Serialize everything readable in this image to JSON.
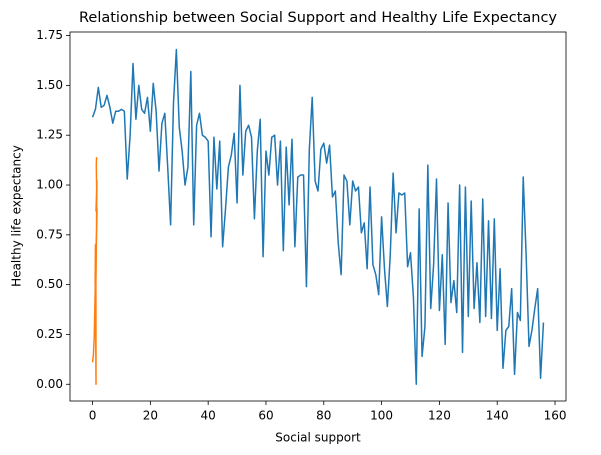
{
  "chart_data": {
    "type": "line",
    "title": "Relationship between Social Support and Healthy Life Expectancy",
    "xlabel": "Social support",
    "ylabel": "Healthy life expectancy",
    "xlim": [
      -7.8,
      163.8
    ],
    "xticks": [
      0,
      20,
      40,
      60,
      80,
      100,
      120,
      140,
      160
    ],
    "ylim": [
      -0.084,
      1.768
    ],
    "yticks": [
      {
        "value": 0,
        "label": "0.00"
      },
      0.25,
      {
        "value": 0.5,
        "label": "0.50"
      },
      0.75,
      {
        "value": 1,
        "label": "1.00"
      },
      1.25,
      {
        "value": 1.5,
        "label": "1.50"
      },
      1.75
    ],
    "series": [
      {
        "color": "#1f77b4",
        "x": [
          0,
          1,
          2,
          3,
          4,
          5,
          6,
          7,
          8,
          9,
          10,
          11,
          12,
          13,
          14,
          15,
          16,
          17,
          18,
          19,
          20,
          21,
          22,
          23,
          24,
          25,
          26,
          27,
          28,
          29,
          30,
          31,
          32,
          33,
          34,
          35,
          36,
          37,
          38,
          39,
          40,
          41,
          42,
          43,
          44,
          45,
          46,
          47,
          48,
          49,
          50,
          51,
          52,
          53,
          54,
          55,
          56,
          57,
          58,
          59,
          60,
          61,
          62,
          63,
          64,
          65,
          66,
          67,
          68,
          69,
          70,
          71,
          72,
          73,
          74,
          75,
          76,
          77,
          78,
          79,
          80,
          81,
          82,
          83,
          84,
          85,
          86,
          87,
          88,
          89,
          90,
          91,
          92,
          93,
          94,
          95,
          96,
          97,
          98,
          99,
          100,
          101,
          102,
          103,
          104,
          105,
          106,
          107,
          108,
          109,
          110,
          111,
          112,
          113,
          114,
          115,
          116,
          117,
          118,
          119,
          120,
          121,
          122,
          123,
          124,
          125,
          126,
          127,
          128,
          129,
          130,
          131,
          132,
          133,
          134,
          135,
          136,
          137,
          138,
          139,
          140,
          141,
          142,
          143,
          144,
          145,
          146,
          147,
          148,
          149,
          150,
          151,
          152,
          153,
          154,
          155,
          156
        ],
        "values": [
          1.34,
          1.38,
          1.49,
          1.39,
          1.4,
          1.45,
          1.39,
          1.31,
          1.37,
          1.37,
          1.38,
          1.37,
          1.03,
          1.25,
          1.61,
          1.33,
          1.5,
          1.38,
          1.36,
          1.44,
          1.27,
          1.51,
          1.37,
          1.07,
          1.31,
          1.36,
          1.09,
          0.8,
          1.41,
          1.68,
          1.29,
          1.17,
          1.0,
          1.09,
          1.57,
          0.8,
          1.3,
          1.36,
          1.25,
          1.24,
          1.22,
          0.74,
          1.24,
          0.98,
          1.22,
          0.69,
          0.88,
          1.09,
          1.15,
          1.26,
          0.91,
          1.5,
          1.05,
          1.27,
          1.3,
          1.24,
          0.83,
          1.17,
          1.33,
          0.64,
          1.17,
          1.05,
          1.24,
          1.25,
          1.0,
          1.22,
          0.67,
          1.19,
          0.9,
          1.23,
          0.69,
          1.04,
          1.05,
          1.05,
          0.49,
          1.18,
          1.44,
          1.02,
          0.97,
          1.18,
          1.21,
          1.11,
          1.2,
          0.94,
          0.97,
          0.71,
          0.55,
          1.05,
          1.02,
          0.8,
          1.02,
          0.97,
          0.99,
          0.76,
          0.81,
          0.58,
          0.99,
          0.6,
          0.55,
          0.45,
          0.84,
          0.58,
          0.39,
          0.65,
          1.06,
          0.76,
          0.96,
          0.95,
          0.96,
          0.59,
          0.66,
          0.44,
          0.0,
          0.88,
          0.14,
          0.29,
          1.1,
          0.38,
          0.6,
          1.03,
          0.37,
          0.65,
          0.2,
          0.91,
          0.41,
          0.52,
          0.36,
          1.0,
          0.16,
          0.99,
          0.34,
          0.92,
          0.38,
          0.61,
          0.31,
          0.93,
          0.34,
          0.82,
          0.33,
          0.83,
          0.27,
          0.58,
          0.08,
          0.27,
          0.29,
          0.48,
          0.05,
          0.36,
          0.32,
          1.04,
          0.65,
          0.19,
          0.27,
          0.38,
          0.48,
          0.03,
          0.31
        ]
      },
      {
        "color": "#ff7f0e",
        "x": [
          1.4,
          1.3,
          1.45,
          1.2,
          1.5,
          1.35,
          1.25,
          1.1,
          1.0,
          0.9,
          1.55,
          0.8,
          1.15,
          1.2,
          1.05,
          1.4,
          0.6,
          1.2,
          0.95,
          0.3,
          0.0
        ],
        "values": [
          1.14,
          1.1,
          0.95,
          0.87,
          1.02,
          0.75,
          0.6,
          0.45,
          0.7,
          0.5,
          0.88,
          0.3,
          0.65,
          0.0,
          0.4,
          0.8,
          0.25,
          0.55,
          0.35,
          0.15,
          0.11
        ]
      }
    ]
  }
}
